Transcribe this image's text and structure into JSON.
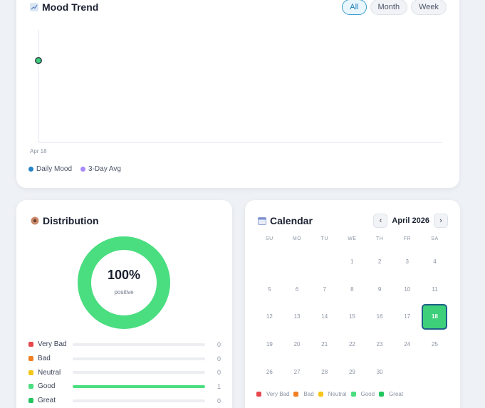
{
  "colors": {
    "accent": "#1a7fb6",
    "very_bad": "#e5484d",
    "bad": "#f07f24",
    "neutral": "#f5c518",
    "good": "#4ade80",
    "great": "#22c55e",
    "daily": "#2384c6",
    "avg": "#a78bfa"
  },
  "trend": {
    "title": "Mood Trend",
    "icon": "chart-icon",
    "ranges": [
      "All",
      "Month",
      "Week"
    ],
    "active_range": "All",
    "x_tick": "Apr 18",
    "legend": [
      "Daily Mood",
      "3-Day Avg"
    ]
  },
  "chart_data": {
    "type": "line",
    "x": [
      "Apr 18"
    ],
    "series": [
      {
        "name": "Daily Mood",
        "values": [
          4
        ]
      },
      {
        "name": "3-Day Avg",
        "values": [
          4
        ]
      }
    ],
    "ylim": [
      1,
      5
    ],
    "grid": false,
    "legend": "bottom-left"
  },
  "distribution": {
    "title": "Distribution",
    "icon": "palette-icon",
    "percent": "100%",
    "sub": "positive",
    "positive_fraction": 1.0,
    "rows": [
      {
        "label": "Very Bad",
        "count": "0",
        "fraction": 0,
        "color": "#e5484d"
      },
      {
        "label": "Bad",
        "count": "0",
        "fraction": 0,
        "color": "#f07f24"
      },
      {
        "label": "Neutral",
        "count": "0",
        "fraction": 0,
        "color": "#f5c518"
      },
      {
        "label": "Good",
        "count": "1",
        "fraction": 1,
        "color": "#4ade80"
      },
      {
        "label": "Great",
        "count": "0",
        "fraction": 0,
        "color": "#22c55e"
      }
    ]
  },
  "calendar": {
    "title": "Calendar",
    "icon": "calendar-icon",
    "month": "April 2026",
    "prev": "‹",
    "next": "›",
    "weekdays": [
      "SU",
      "MO",
      "TU",
      "WE",
      "TH",
      "FR",
      "SA"
    ],
    "first_weekday": 3,
    "days_in_month": 30,
    "selected_day": 18,
    "legend": [
      "Very Bad",
      "Bad",
      "Neutral",
      "Good",
      "Great"
    ]
  }
}
